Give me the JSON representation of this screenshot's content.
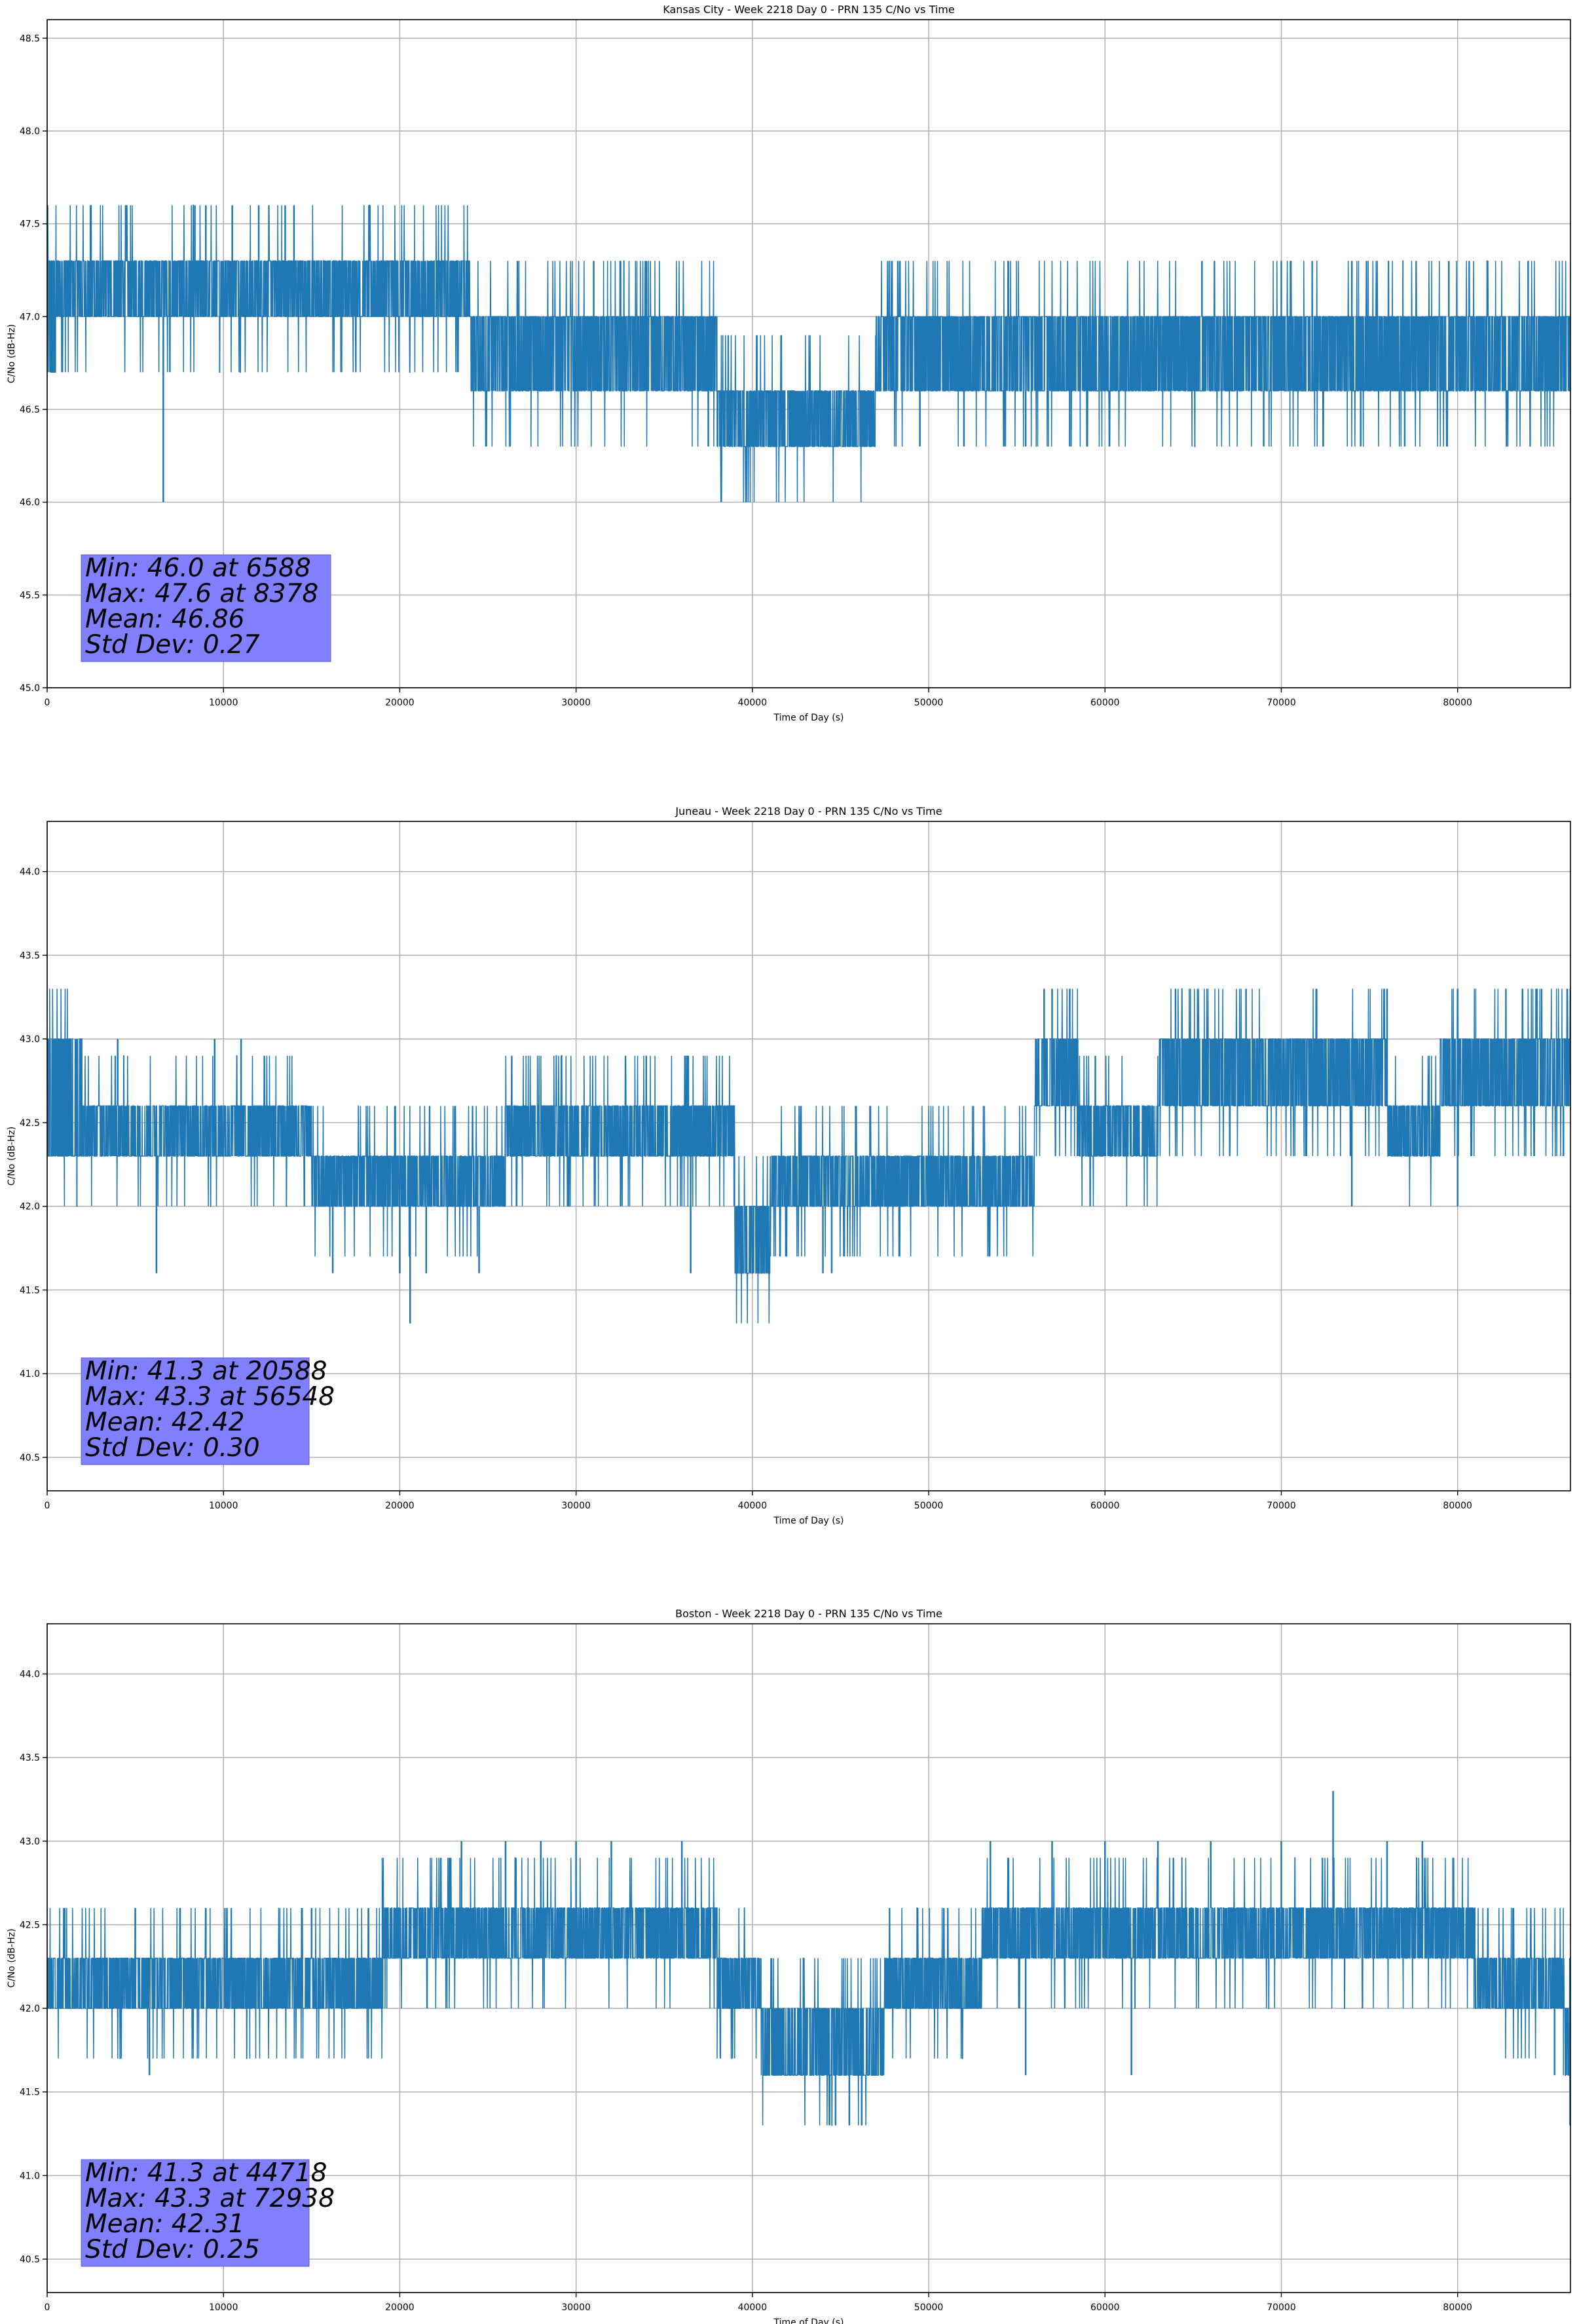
{
  "figure": {
    "background": "#ffffff",
    "line_color": "#1f77b4",
    "stats_box_color": "#8080ff",
    "grid_color": "#b0b0b0"
  },
  "chart_data": [
    {
      "type": "line",
      "title": "Kansas City - Week 2218 Day 0 - PRN 135 C/No vs Time",
      "xlabel": "Time of Day (s)",
      "ylabel": "C/No (dB-Hz)",
      "xlim": [
        0,
        86400
      ],
      "ylim": [
        45.0,
        48.6
      ],
      "xticks": [
        0,
        10000,
        20000,
        30000,
        40000,
        50000,
        60000,
        70000,
        80000
      ],
      "yticks": [
        "45.0",
        "45.5",
        "46.0",
        "46.5",
        "47.0",
        "47.5",
        "48.0",
        "48.5"
      ],
      "grid": true,
      "stats_lines": [
        "Min: 46.0 at 6588",
        "Max: 47.6 at 8378",
        "Mean: 46.86",
        "Std Dev: 0.27"
      ],
      "quantization_step": 0.3,
      "segments": [
        {
          "x_start": 0,
          "x_end": 500,
          "low": 46.7,
          "high": 47.3
        },
        {
          "x_start": 500,
          "x_end": 6500,
          "low": 47.0,
          "high": 47.3
        },
        {
          "x_start": 6500,
          "x_end": 16500,
          "low": 47.0,
          "high": 47.3
        },
        {
          "x_start": 16500,
          "x_end": 24000,
          "low": 47.0,
          "high": 47.3
        },
        {
          "x_start": 24000,
          "x_end": 37000,
          "low": 46.6,
          "high": 47.0
        },
        {
          "x_start": 37000,
          "x_end": 38000,
          "low": 46.6,
          "high": 47.0
        },
        {
          "x_start": 38000,
          "x_end": 47000,
          "low": 46.3,
          "high": 46.6
        },
        {
          "x_start": 47000,
          "x_end": 61000,
          "low": 46.6,
          "high": 47.0
        },
        {
          "x_start": 61000,
          "x_end": 86400,
          "low": 46.6,
          "high": 47.0
        }
      ],
      "spikes": [
        {
          "x": 6588,
          "y": 46.0
        },
        {
          "x": 8378,
          "y": 47.6
        },
        {
          "x": 9000,
          "y": 47.6
        },
        {
          "x": 10500,
          "y": 47.6
        },
        {
          "x": 12000,
          "y": 47.6
        },
        {
          "x": 13500,
          "y": 47.6
        },
        {
          "x": 14000,
          "y": 47.6
        },
        {
          "x": 34000,
          "y": 47.3
        },
        {
          "x": 31000,
          "y": 47.3
        },
        {
          "x": 37500,
          "y": 46.3
        },
        {
          "x": 49500,
          "y": 46.3
        },
        {
          "x": 52000,
          "y": 46.3
        },
        {
          "x": 55500,
          "y": 46.3
        },
        {
          "x": 58000,
          "y": 46.3
        },
        {
          "x": 69000,
          "y": 46.3
        },
        {
          "x": 74500,
          "y": 46.3
        },
        {
          "x": 77000,
          "y": 46.3
        },
        {
          "x": 65500,
          "y": 47.3
        },
        {
          "x": 70000,
          "y": 47.3
        },
        {
          "x": 74000,
          "y": 47.3
        },
        {
          "x": 79500,
          "y": 47.3
        },
        {
          "x": 84000,
          "y": 47.3
        }
      ]
    },
    {
      "type": "line",
      "title": "Juneau - Week 2218 Day 0 - PRN 135 C/No vs Time",
      "xlabel": "Time of Day (s)",
      "ylabel": "C/No (dB-Hz)",
      "xlim": [
        0,
        86400
      ],
      "ylim": [
        40.3,
        44.3
      ],
      "xticks": [
        0,
        10000,
        20000,
        30000,
        40000,
        50000,
        60000,
        70000,
        80000
      ],
      "yticks": [
        "40.5",
        "41.0",
        "41.5",
        "42.0",
        "42.5",
        "43.0",
        "43.5",
        "44.0"
      ],
      "grid": true,
      "stats_lines": [
        "Min: 41.3 at 20588",
        "Max: 43.3 at 56548",
        "Mean: 42.42",
        "Std Dev: 0.30"
      ],
      "quantization_step": 0.3,
      "segments": [
        {
          "x_start": 0,
          "x_end": 2000,
          "low": 42.3,
          "high": 43.0
        },
        {
          "x_start": 2000,
          "x_end": 15000,
          "low": 42.3,
          "high": 42.6
        },
        {
          "x_start": 15000,
          "x_end": 26000,
          "low": 42.0,
          "high": 42.3
        },
        {
          "x_start": 26000,
          "x_end": 34000,
          "low": 42.3,
          "high": 42.6
        },
        {
          "x_start": 34000,
          "x_end": 39000,
          "low": 42.3,
          "high": 42.6
        },
        {
          "x_start": 39000,
          "x_end": 41000,
          "low": 41.6,
          "high": 42.0
        },
        {
          "x_start": 41000,
          "x_end": 56000,
          "low": 42.0,
          "high": 42.3
        },
        {
          "x_start": 56000,
          "x_end": 58500,
          "low": 42.6,
          "high": 43.0
        },
        {
          "x_start": 58500,
          "x_end": 63000,
          "low": 42.3,
          "high": 42.6
        },
        {
          "x_start": 63000,
          "x_end": 76000,
          "low": 42.6,
          "high": 43.0
        },
        {
          "x_start": 76000,
          "x_end": 79000,
          "low": 42.3,
          "high": 42.6
        },
        {
          "x_start": 79000,
          "x_end": 86400,
          "low": 42.6,
          "high": 43.0
        }
      ],
      "spikes": [
        {
          "x": 6200,
          "y": 41.6
        },
        {
          "x": 16200,
          "y": 41.6
        },
        {
          "x": 20588,
          "y": 41.3
        },
        {
          "x": 20000,
          "y": 41.6
        },
        {
          "x": 21500,
          "y": 41.6
        },
        {
          "x": 24500,
          "y": 41.6
        },
        {
          "x": 36500,
          "y": 41.6
        },
        {
          "x": 44000,
          "y": 41.6
        },
        {
          "x": 44500,
          "y": 41.6
        },
        {
          "x": 56548,
          "y": 43.3
        },
        {
          "x": 57000,
          "y": 43.3
        },
        {
          "x": 58000,
          "y": 43.3
        },
        {
          "x": 64000,
          "y": 43.3
        },
        {
          "x": 68000,
          "y": 43.3
        },
        {
          "x": 72000,
          "y": 43.3
        },
        {
          "x": 76000,
          "y": 43.3
        },
        {
          "x": 84500,
          "y": 43.3
        },
        {
          "x": 9500,
          "y": 43.0
        },
        {
          "x": 11000,
          "y": 43.0
        },
        {
          "x": 4000,
          "y": 43.0
        },
        {
          "x": 74000,
          "y": 42.0
        },
        {
          "x": 80000,
          "y": 42.0
        },
        {
          "x": 86000,
          "y": 42.3
        }
      ]
    },
    {
      "type": "line",
      "title": "Boston - Week 2218 Day 0 - PRN 135 C/No vs Time",
      "xlabel": "Time of Day (s)",
      "ylabel": "C/No (dB-Hz)",
      "xlim": [
        0,
        86400
      ],
      "ylim": [
        40.3,
        44.3
      ],
      "xticks": [
        0,
        10000,
        20000,
        30000,
        40000,
        50000,
        60000,
        70000,
        80000
      ],
      "yticks": [
        "40.5",
        "41.0",
        "41.5",
        "42.0",
        "42.5",
        "43.0",
        "43.5",
        "44.0"
      ],
      "grid": true,
      "stats_lines": [
        "Min: 41.3 at 44718",
        "Max: 43.3 at 72938",
        "Mean: 42.31",
        "Std Dev: 0.25"
      ],
      "quantization_step": 0.3,
      "segments": [
        {
          "x_start": 0,
          "x_end": 19000,
          "low": 42.0,
          "high": 42.3
        },
        {
          "x_start": 19000,
          "x_end": 38000,
          "low": 42.3,
          "high": 42.6
        },
        {
          "x_start": 38000,
          "x_end": 40500,
          "low": 42.0,
          "high": 42.3
        },
        {
          "x_start": 40500,
          "x_end": 47500,
          "low": 41.6,
          "high": 42.0
        },
        {
          "x_start": 47500,
          "x_end": 53000,
          "low": 42.0,
          "high": 42.3
        },
        {
          "x_start": 53000,
          "x_end": 81000,
          "low": 42.3,
          "high": 42.6
        },
        {
          "x_start": 81000,
          "x_end": 86000,
          "low": 42.0,
          "high": 42.3
        },
        {
          "x_start": 86000,
          "x_end": 86400,
          "low": 41.6,
          "high": 42.0
        }
      ],
      "spikes": [
        {
          "x": 5800,
          "y": 41.6
        },
        {
          "x": 1000,
          "y": 42.6
        },
        {
          "x": 5000,
          "y": 42.6
        },
        {
          "x": 9000,
          "y": 42.6
        },
        {
          "x": 15000,
          "y": 42.6
        },
        {
          "x": 23500,
          "y": 43.0
        },
        {
          "x": 26000,
          "y": 43.0
        },
        {
          "x": 28000,
          "y": 43.0
        },
        {
          "x": 30000,
          "y": 43.0
        },
        {
          "x": 32000,
          "y": 43.0
        },
        {
          "x": 36000,
          "y": 43.0
        },
        {
          "x": 44718,
          "y": 41.3
        },
        {
          "x": 45500,
          "y": 41.3
        },
        {
          "x": 46200,
          "y": 41.3
        },
        {
          "x": 55500,
          "y": 41.6
        },
        {
          "x": 61500,
          "y": 41.6
        },
        {
          "x": 53500,
          "y": 43.0
        },
        {
          "x": 57000,
          "y": 43.0
        },
        {
          "x": 60000,
          "y": 43.0
        },
        {
          "x": 63000,
          "y": 43.0
        },
        {
          "x": 66000,
          "y": 43.0
        },
        {
          "x": 70000,
          "y": 43.0
        },
        {
          "x": 72938,
          "y": 43.3
        },
        {
          "x": 76000,
          "y": 43.0
        },
        {
          "x": 78000,
          "y": 43.0
        },
        {
          "x": 85500,
          "y": 41.6
        }
      ]
    }
  ]
}
